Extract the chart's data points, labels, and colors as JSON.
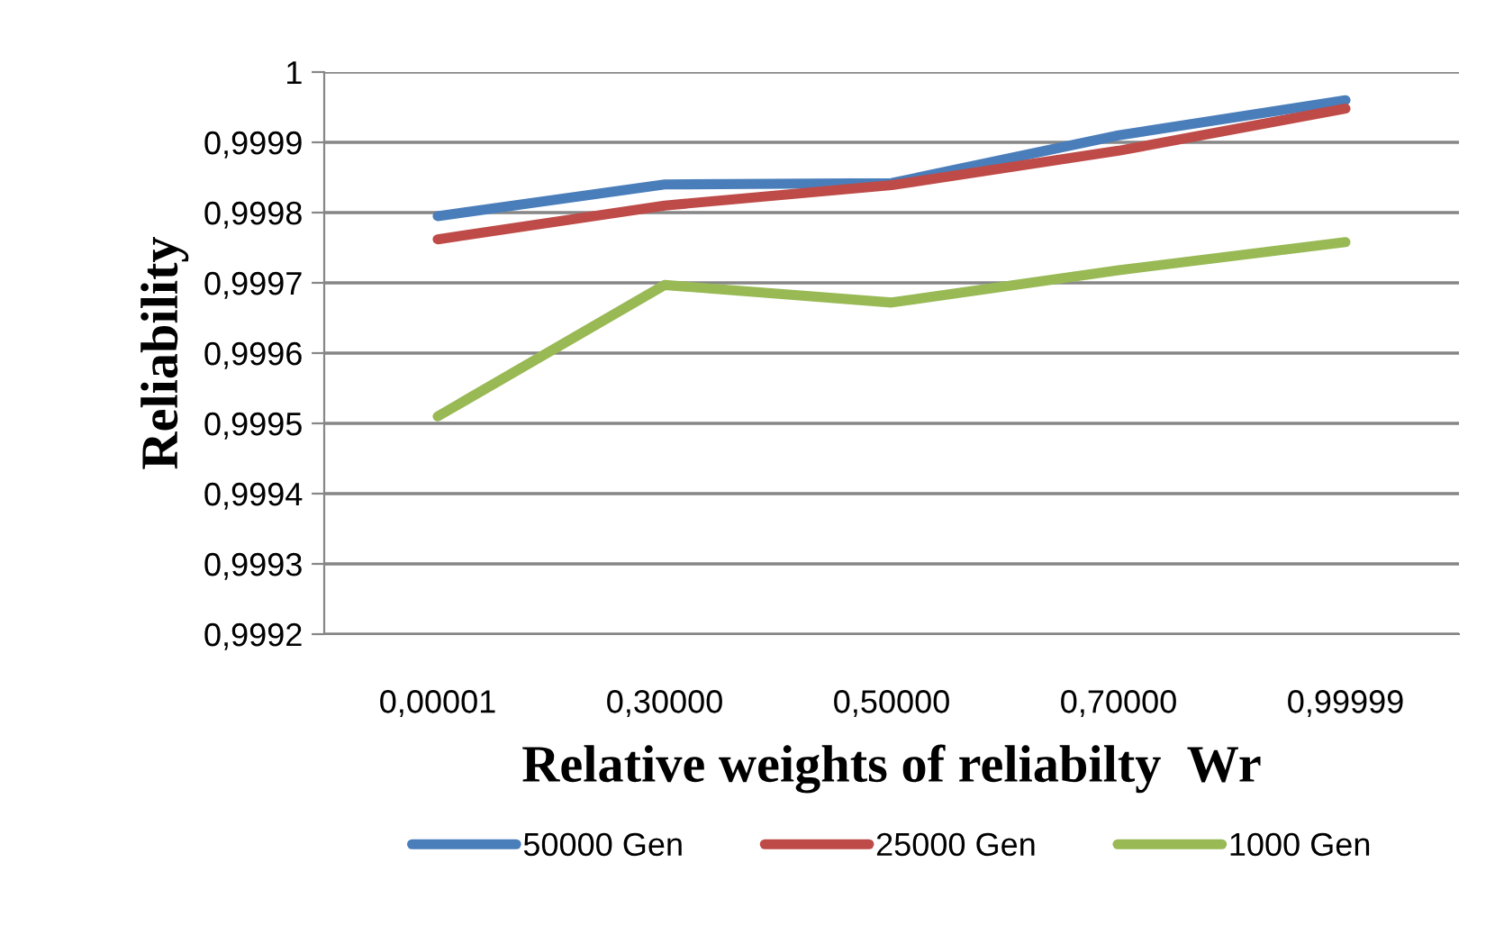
{
  "chart_data": {
    "type": "line",
    "xlabel": "Relative weights of reliabilty  Wr",
    "ylabel": "Reliability",
    "categories": [
      "0,00001",
      "0,30000",
      "0,50000",
      "0,70000",
      "0,99999"
    ],
    "series": [
      {
        "name": "50000 Gen",
        "color": "#4a7ebb",
        "values": [
          0.999795,
          0.99984,
          0.999842,
          0.99991,
          0.99996
        ]
      },
      {
        "name": "25000 Gen",
        "color": "#be4b48",
        "values": [
          0.999762,
          0.99981,
          0.999839,
          0.999888,
          0.999948
        ]
      },
      {
        "name": "1000 Gen",
        "color": "#98b954",
        "values": [
          0.99951,
          0.999697,
          0.999672,
          0.999718,
          0.999758
        ]
      }
    ],
    "ylim": [
      0.9992,
      1
    ],
    "yticks": [
      {
        "value": 0.9992,
        "label": "0,9992"
      },
      {
        "value": 0.9993,
        "label": "0,9993"
      },
      {
        "value": 0.9994,
        "label": "0,9994"
      },
      {
        "value": 0.9995,
        "label": "0,9995"
      },
      {
        "value": 0.9996,
        "label": "0,9996"
      },
      {
        "value": 0.9997,
        "label": "0,9997"
      },
      {
        "value": 0.9998,
        "label": "0,9998"
      },
      {
        "value": 0.9999,
        "label": "0,9999"
      },
      {
        "value": 1,
        "label": "1"
      }
    ],
    "grid": "y",
    "legend": "bottom",
    "marker": "none",
    "line_style": "solid"
  }
}
